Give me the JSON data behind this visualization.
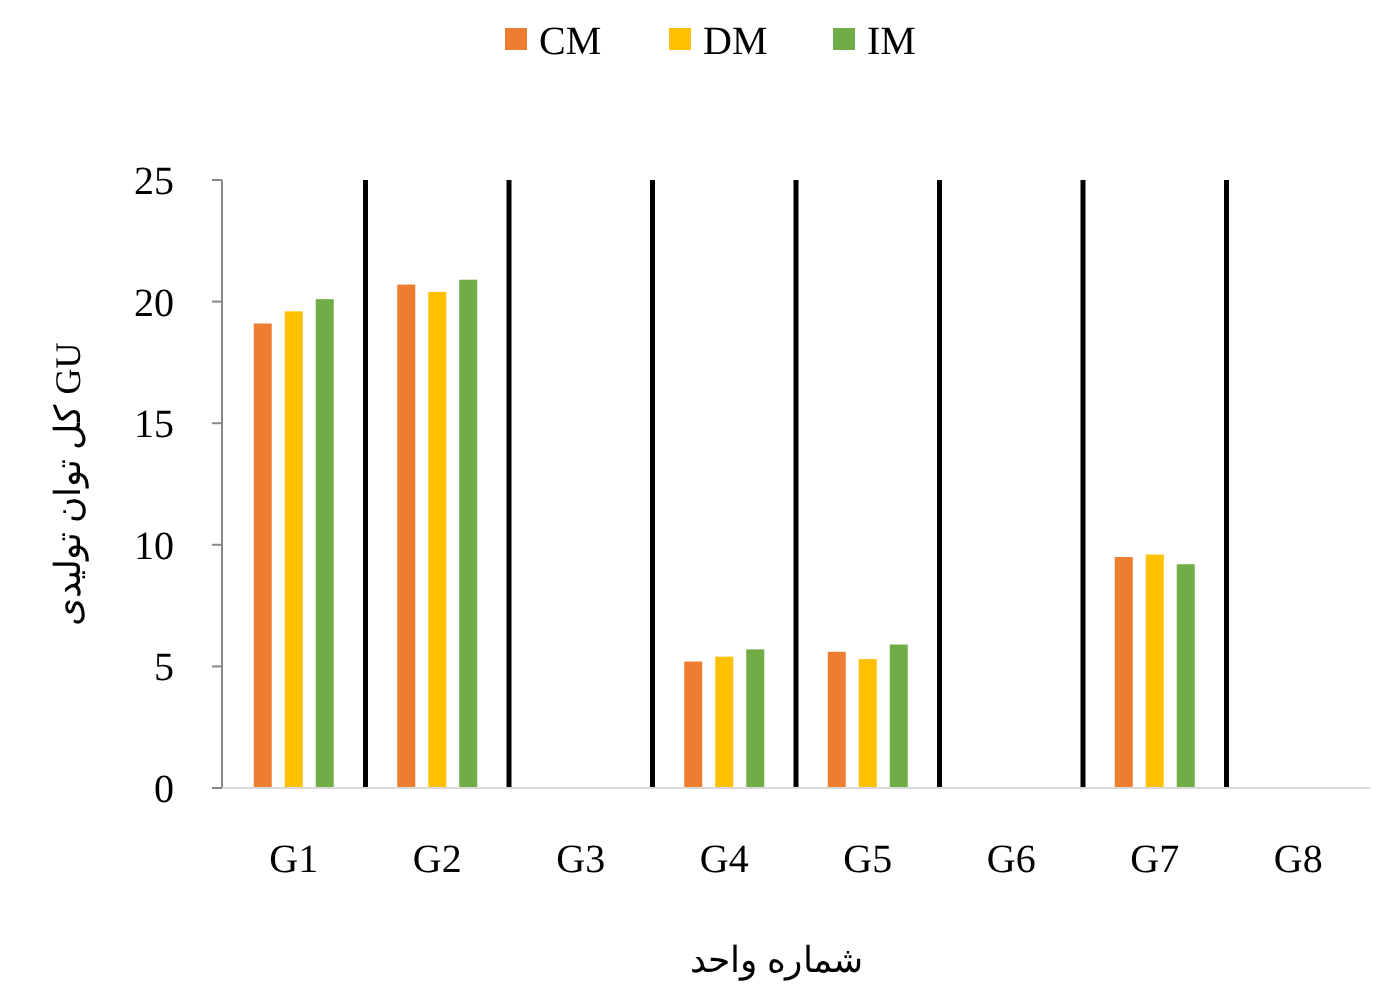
{
  "chart_data": {
    "type": "bar",
    "xlabel": "شماره واحد",
    "ylabel": "کل توان تولیدی GU",
    "categories": [
      "G1",
      "G2",
      "G3",
      "G4",
      "G5",
      "G6",
      "G7",
      "G8"
    ],
    "series": [
      {
        "name": "CM",
        "color": "#ed7d31",
        "values": [
          19.1,
          20.7,
          0,
          5.2,
          5.6,
          0,
          9.5,
          0
        ]
      },
      {
        "name": "DM",
        "color": "#ffc000",
        "values": [
          19.6,
          20.4,
          0,
          5.4,
          5.3,
          0,
          9.6,
          0
        ]
      },
      {
        "name": "IM",
        "color": "#70ad47",
        "values": [
          20.1,
          20.9,
          0,
          5.7,
          5.9,
          0,
          9.2,
          0
        ]
      }
    ],
    "ylim": [
      0,
      25
    ],
    "yticks": [
      0,
      5,
      10,
      15,
      20,
      25
    ],
    "grid": "x",
    "legend": "top"
  }
}
